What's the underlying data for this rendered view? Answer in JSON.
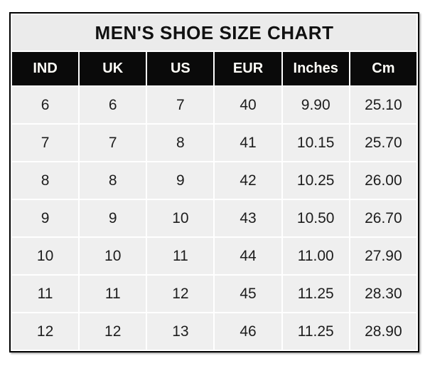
{
  "title": "MEN'S SHOE SIZE CHART",
  "colors": {
    "frame_border": "#000000",
    "title_bg": "#ebebeb",
    "header_bg": "#0a0a0a",
    "header_text": "#fffef8",
    "cell_bg": "#efefef",
    "cell_text": "#1d1d1d",
    "gridline": "#ffffff",
    "page_bg": "#ffffff"
  },
  "chart_data": {
    "type": "table",
    "title": "MEN'S SHOE SIZE CHART",
    "columns": [
      "IND",
      "UK",
      "US",
      "EUR",
      "Inches",
      "Cm"
    ],
    "rows": [
      [
        "6",
        "6",
        "7",
        "40",
        "9.90",
        "25.10"
      ],
      [
        "7",
        "7",
        "8",
        "41",
        "10.15",
        "25.70"
      ],
      [
        "8",
        "8",
        "9",
        "42",
        "10.25",
        "26.00"
      ],
      [
        "9",
        "9",
        "10",
        "43",
        "10.50",
        "26.70"
      ],
      [
        "10",
        "10",
        "11",
        "44",
        "11.00",
        "27.90"
      ],
      [
        "11",
        "11",
        "12",
        "45",
        "11.25",
        "28.30"
      ],
      [
        "12",
        "12",
        "13",
        "46",
        "11.25",
        "28.90"
      ]
    ]
  }
}
